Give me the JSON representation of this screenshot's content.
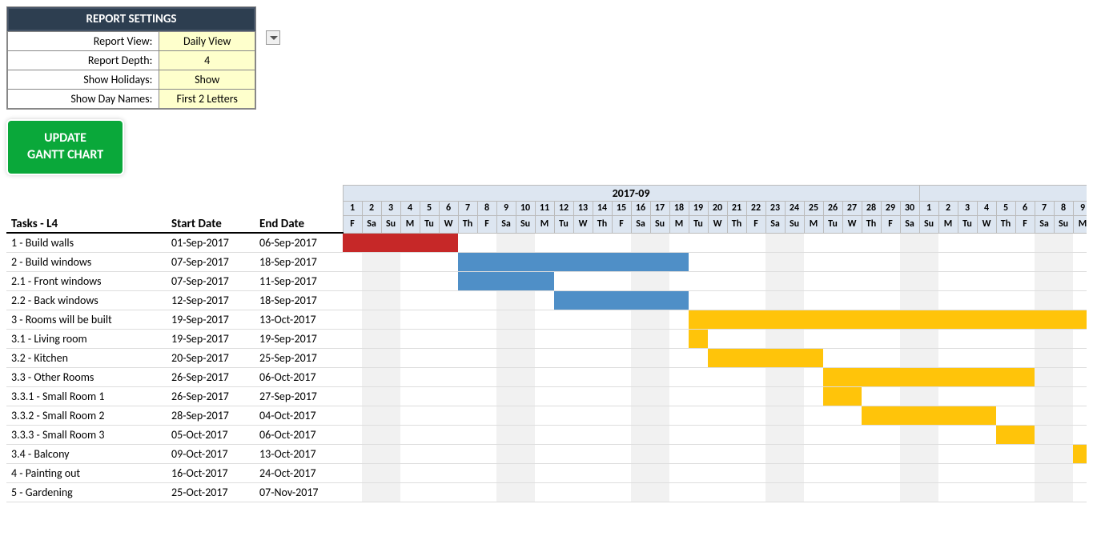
{
  "settings": {
    "title": "REPORT SETTINGS",
    "rows": [
      {
        "label": "Report View:",
        "value": "Daily View",
        "has_dropdown": true
      },
      {
        "label": "Report Depth:",
        "value": "4"
      },
      {
        "label": "Show Holidays:",
        "value": "Show"
      },
      {
        "label": "Show Day Names:",
        "value": "First 2 Letters"
      }
    ]
  },
  "update_button": "UPDATE\nGANTT CHART",
  "column_headers": {
    "tasks": "Tasks - L4",
    "start": "Start Date",
    "end": "End Date"
  },
  "colors": {
    "red": "#c62828",
    "blue": "#4f8fc7",
    "orange": "#ffc40a",
    "weekend": "#f1f1f1",
    "month_bg": "#dde6f1"
  },
  "timeline": {
    "start_date": "2017-09-01",
    "num_days": 39,
    "month_label": "2017-09",
    "month_label_span": 30
  },
  "tasks": [
    {
      "name": "1 - Build walls",
      "start": "01-Sep-2017",
      "end": "06-Sep-2017",
      "bar_start": 0,
      "bar_len": 6,
      "color": "red"
    },
    {
      "name": "2 - Build windows",
      "start": "07-Sep-2017",
      "end": "18-Sep-2017",
      "bar_start": 6,
      "bar_len": 12,
      "color": "blue"
    },
    {
      "name": "2.1 - Front windows",
      "start": "07-Sep-2017",
      "end": "11-Sep-2017",
      "bar_start": 6,
      "bar_len": 5,
      "color": "blue"
    },
    {
      "name": "2.2 - Back windows",
      "start": "12-Sep-2017",
      "end": "18-Sep-2017",
      "bar_start": 11,
      "bar_len": 7,
      "color": "blue"
    },
    {
      "name": "3 - Rooms will be built",
      "start": "19-Sep-2017",
      "end": "13-Oct-2017",
      "bar_start": 18,
      "bar_len": 21,
      "color": "orange"
    },
    {
      "name": "3.1 - Living room",
      "start": "19-Sep-2017",
      "end": "19-Sep-2017",
      "bar_start": 18,
      "bar_len": 1,
      "color": "orange"
    },
    {
      "name": "3.2 - Kitchen",
      "start": "20-Sep-2017",
      "end": "25-Sep-2017",
      "bar_start": 19,
      "bar_len": 6,
      "color": "orange"
    },
    {
      "name": "3.3 - Other Rooms",
      "start": "26-Sep-2017",
      "end": "06-Oct-2017",
      "bar_start": 25,
      "bar_len": 11,
      "color": "orange"
    },
    {
      "name": "3.3.1 - Small Room 1",
      "start": "26-Sep-2017",
      "end": "27-Sep-2017",
      "bar_start": 25,
      "bar_len": 2,
      "color": "orange"
    },
    {
      "name": "3.3.2 - Small Room 2",
      "start": "28-Sep-2017",
      "end": "04-Oct-2017",
      "bar_start": 27,
      "bar_len": 7,
      "color": "orange"
    },
    {
      "name": "3.3.3 - Small Room 3",
      "start": "05-Oct-2017",
      "end": "06-Oct-2017",
      "bar_start": 34,
      "bar_len": 2,
      "color": "orange"
    },
    {
      "name": "3.4 - Balcony",
      "start": "09-Oct-2017",
      "end": "13-Oct-2017",
      "bar_start": 38,
      "bar_len": 1,
      "color": "orange"
    },
    {
      "name": "4 - Painting out",
      "start": "16-Oct-2017",
      "end": "24-Oct-2017",
      "bar_start": -1,
      "bar_len": 0,
      "color": "orange"
    },
    {
      "name": "5 - Gardening",
      "start": "25-Oct-2017",
      "end": "07-Nov-2017",
      "bar_start": -1,
      "bar_len": 0,
      "color": "orange"
    }
  ]
}
